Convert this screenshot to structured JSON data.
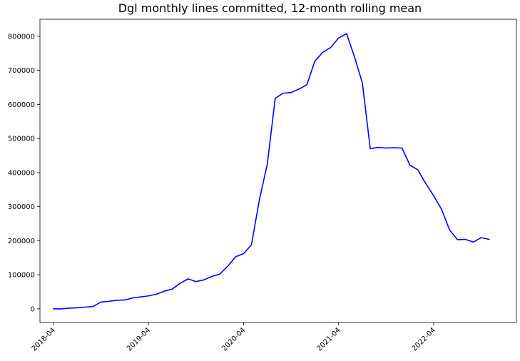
{
  "chart_data": {
    "type": "line",
    "title": "Dgl monthly lines committed, 12-month rolling mean",
    "xlabel": "",
    "ylabel": "",
    "color": "#0000ff",
    "grid": false,
    "ylim": [
      -40000,
      850000
    ],
    "xlim": [
      "2018-02",
      "2023-02"
    ],
    "x_ticks": [
      "2018-04",
      "2019-04",
      "2020-04",
      "2021-04",
      "2022-04"
    ],
    "y_ticks": [
      0,
      100000,
      200000,
      300000,
      400000,
      500000,
      600000,
      700000,
      800000
    ],
    "series": [
      {
        "name": "",
        "x": [
          "2018-04",
          "2018-05",
          "2018-06",
          "2018-07",
          "2018-08",
          "2018-09",
          "2018-10",
          "2018-11",
          "2018-12",
          "2019-01",
          "2019-02",
          "2019-03",
          "2019-04",
          "2019-05",
          "2019-06",
          "2019-07",
          "2019-08",
          "2019-09",
          "2019-10",
          "2019-11",
          "2019-12",
          "2020-01",
          "2020-02",
          "2020-03",
          "2020-04",
          "2020-05",
          "2020-06",
          "2020-07",
          "2020-08",
          "2020-09",
          "2020-10",
          "2020-11",
          "2020-12",
          "2021-01",
          "2021-02",
          "2021-03",
          "2021-04",
          "2021-05",
          "2021-06",
          "2021-07",
          "2021-08",
          "2021-09",
          "2021-10",
          "2021-11",
          "2021-12",
          "2022-01",
          "2022-02",
          "2022-03",
          "2022-04",
          "2022-05",
          "2022-06",
          "2022-07",
          "2022-08",
          "2022-09",
          "2022-10",
          "2022-11"
        ],
        "values": [
          0,
          0,
          2000,
          3000,
          5000,
          7000,
          20000,
          22000,
          25000,
          26000,
          32000,
          35000,
          38000,
          43000,
          52000,
          58000,
          75000,
          88000,
          80000,
          85000,
          95000,
          102000,
          125000,
          153000,
          162000,
          188000,
          320000,
          425000,
          618000,
          633000,
          635000,
          645000,
          658000,
          727000,
          753000,
          767000,
          795000,
          808000,
          740000,
          663000,
          470000,
          474000,
          472000,
          473000,
          472000,
          422000,
          408000,
          368000,
          332000,
          292000,
          232000,
          203000,
          204000,
          196000,
          209000,
          204000
        ]
      }
    ]
  }
}
